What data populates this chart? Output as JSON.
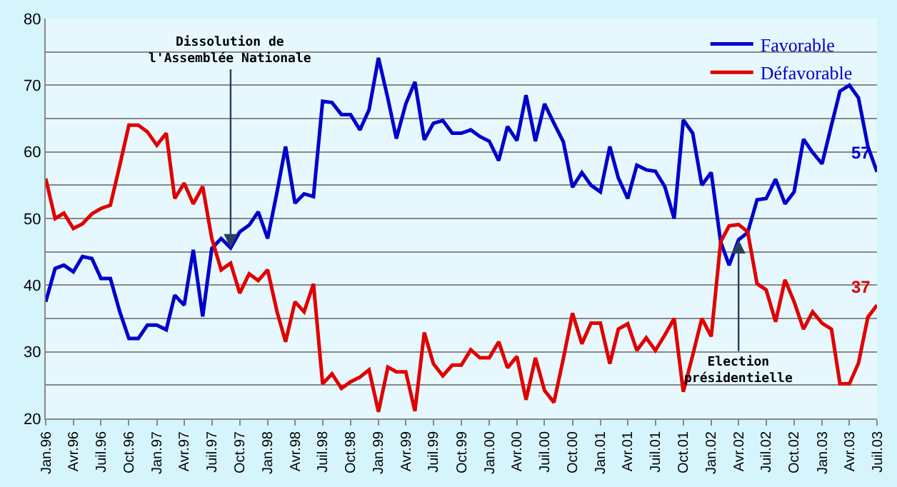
{
  "chart_data": {
    "type": "line",
    "x": [
      "1996-01",
      "1996-02",
      "1996-03",
      "1996-04",
      "1996-05",
      "1996-06",
      "1996-07",
      "1996-08",
      "1996-09",
      "1996-10",
      "1996-11",
      "1996-12",
      "1997-01",
      "1997-02",
      "1997-03",
      "1997-04",
      "1997-05",
      "1997-06",
      "1997-07",
      "1997-08",
      "1997-09",
      "1997-10",
      "1997-11",
      "1997-12",
      "1998-01",
      "1998-02",
      "1998-03",
      "1998-04",
      "1998-05",
      "1998-06",
      "1998-07",
      "1998-08",
      "1998-09",
      "1998-10",
      "1998-11",
      "1998-12",
      "1999-01",
      "1999-02",
      "1999-03",
      "1999-04",
      "1999-05",
      "1999-06",
      "1999-07",
      "1999-08",
      "1999-09",
      "1999-10",
      "1999-11",
      "1999-12",
      "2000-01",
      "2000-02",
      "2000-03",
      "2000-04",
      "2000-05",
      "2000-06",
      "2000-07",
      "2000-08",
      "2000-09",
      "2000-10",
      "2000-11",
      "2000-12",
      "2001-01",
      "2001-02",
      "2001-03",
      "2001-04",
      "2001-05",
      "2001-06",
      "2001-07",
      "2001-08",
      "2001-09",
      "2001-10",
      "2001-11",
      "2001-12",
      "2002-01",
      "2002-02",
      "2002-03",
      "2002-04",
      "2002-05",
      "2002-06",
      "2002-07",
      "2002-08",
      "2002-09",
      "2002-10",
      "2002-11",
      "2002-12",
      "2003-01",
      "2003-02",
      "2003-03",
      "2003-04",
      "2003-05",
      "2003-06",
      "2003-07"
    ],
    "series": [
      {
        "name": "Favorable",
        "color": "#0000cc",
        "values": [
          37.5,
          42.5,
          43,
          42,
          44.3,
          44,
          41,
          41,
          36,
          32,
          32,
          34,
          34,
          33.3,
          38.5,
          37,
          45.3,
          35.3,
          45.5,
          47,
          45.6,
          48,
          49,
          51,
          47,
          54,
          60.8,
          52.3,
          53.7,
          53.3,
          67.6,
          67.4,
          65.6,
          65.6,
          63.3,
          66.3,
          74.1,
          68,
          62,
          67.2,
          70.5,
          61.8,
          64.3,
          64.7,
          62.8,
          62.8,
          63.3,
          62.3,
          61.6,
          58.7,
          63.8,
          61.7,
          68.5,
          61.6,
          67.2,
          64.3,
          61.5,
          54.7,
          56.9,
          55,
          54,
          60.8,
          56.1,
          53,
          58,
          57.3,
          57.1,
          54.8,
          50,
          64.8,
          62.8,
          55,
          56.9,
          46.5,
          43,
          46.8,
          47.9,
          52.8,
          53,
          55.9,
          52.2,
          54,
          61.9,
          59.9,
          58.2,
          64,
          69.1,
          70,
          68.1,
          60.8,
          57
        ]
      },
      {
        "name": "Défavorable",
        "color": "#e00000",
        "values": [
          56,
          50,
          50.8,
          48.5,
          49.2,
          50.7,
          51.5,
          52,
          58,
          64,
          64,
          63,
          61,
          62.8,
          53,
          55.3,
          52.2,
          54.8,
          47,
          42.3,
          43.3,
          38.8,
          41.7,
          40.7,
          42.3,
          36,
          31.5,
          37.5,
          36,
          40.2,
          25.2,
          26.7,
          24.5,
          25.5,
          26.2,
          27.3,
          21,
          27.7,
          27,
          27,
          21.1,
          32.9,
          28.2,
          26.4,
          28,
          28,
          30.3,
          29.1,
          29.1,
          31.5,
          27.6,
          29.3,
          22.8,
          29.1,
          24.2,
          22.4,
          29,
          35.8,
          31.2,
          34.3,
          34.3,
          28.2,
          33.4,
          34.2,
          30.2,
          32.1,
          30.2,
          32.5,
          35,
          24,
          29.5,
          35,
          32.3,
          46.5,
          48.9,
          49.1,
          48,
          40.2,
          39.3,
          34.5,
          40.8,
          37.5,
          33.4,
          36,
          34.3,
          33.4,
          25.2,
          25.2,
          28.3,
          35.2,
          37
        ]
      }
    ],
    "ylim": [
      20,
      80
    ],
    "yticks": [
      20,
      {
        "value": 25,
        "label": null
      },
      30,
      {
        "value": 35,
        "label": null
      },
      40,
      {
        "value": 45,
        "label": null
      },
      50,
      {
        "value": 55,
        "label": null
      },
      60,
      {
        "value": 65,
        "label": null
      },
      70,
      {
        "value": 75,
        "label": null
      },
      80
    ],
    "xlim": [
      "1996-01",
      "2003-07"
    ],
    "xticks": [
      {
        "value": "1996-01",
        "label": "Jan.96"
      },
      {
        "value": "1996-04",
        "label": "Avr.96"
      },
      {
        "value": "1996-07",
        "label": "Juil.96"
      },
      {
        "value": "1996-10",
        "label": "Oct.96"
      },
      {
        "value": "1997-01",
        "label": "Jan.97"
      },
      {
        "value": "1997-04",
        "label": "Avr.97"
      },
      {
        "value": "1997-07",
        "label": "Juil.97"
      },
      {
        "value": "1997-10",
        "label": "Oct.97"
      },
      {
        "value": "1998-01",
        "label": "Jan.98"
      },
      {
        "value": "1998-04",
        "label": "Avr.98"
      },
      {
        "value": "1998-07",
        "label": "Juil.98"
      },
      {
        "value": "1998-10",
        "label": "Oct.98"
      },
      {
        "value": "1999-01",
        "label": "Jan.99"
      },
      {
        "value": "1999-04",
        "label": "Avr.99"
      },
      {
        "value": "1999-07",
        "label": "Juil.99"
      },
      {
        "value": "1999-10",
        "label": "Oct.99"
      },
      {
        "value": "2000-01",
        "label": "Jan.00"
      },
      {
        "value": "2000-04",
        "label": "Avr.00"
      },
      {
        "value": "2000-07",
        "label": "Juil.00"
      },
      {
        "value": "2000-10",
        "label": "Oct.00"
      },
      {
        "value": "2001-01",
        "label": "Jan.01"
      },
      {
        "value": "2001-04",
        "label": "Avr.01"
      },
      {
        "value": "2001-07",
        "label": "Juil.01"
      },
      {
        "value": "2001-10",
        "label": "Oct.01"
      },
      {
        "value": "2002-01",
        "label": "Jan.02"
      },
      {
        "value": "2002-04",
        "label": "Avr.02"
      },
      {
        "value": "2002-07",
        "label": "Juil.02"
      },
      {
        "value": "2002-10",
        "label": "Oct.02"
      },
      {
        "value": "2003-01",
        "label": "Jan.03"
      },
      {
        "value": "2003-04",
        "label": "Avr.03"
      },
      {
        "value": "2003-07",
        "label": "Juil.03"
      }
    ],
    "annotations": [
      {
        "text": "Dissolution de\nl'Assemblée Nationale",
        "x": "1997-09",
        "y": 45.6
      },
      {
        "text": "Election\nprésidentielle",
        "x": "2002-04",
        "y": 46.8
      },
      {
        "text": "57",
        "x": "2003-07",
        "y": 57
      },
      {
        "text": "37",
        "x": "2003-07",
        "y": 37
      }
    ],
    "grid": "y",
    "legend": "top right",
    "marker": "none",
    "line_style": "solid"
  }
}
